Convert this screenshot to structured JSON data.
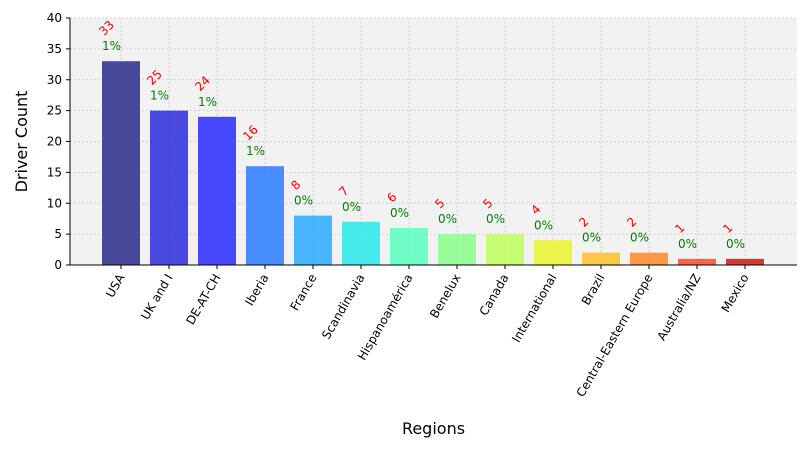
{
  "chart_data": {
    "type": "bar",
    "title": "",
    "xlabel": "Regions",
    "ylabel": "Driver Count",
    "ylim": [
      0,
      40
    ],
    "yticks": [
      0,
      5,
      10,
      15,
      20,
      25,
      30,
      35,
      40
    ],
    "grid": true,
    "categories": [
      "USA",
      "UK and I",
      "DE-AT-CH",
      "Iberia",
      "France",
      "Scandinavia",
      "Hispanoamérica",
      "Benelux",
      "Canada",
      "International",
      "Brazil",
      "Central-Eastern Europe",
      "Australia/NZ",
      "Mexico"
    ],
    "values": [
      33,
      25,
      24,
      16,
      8,
      7,
      6,
      5,
      5,
      4,
      2,
      2,
      1,
      1
    ],
    "count_labels": [
      "33",
      "25",
      "24",
      "16",
      "8",
      "7",
      "6",
      "5",
      "5",
      "4",
      "2",
      "2",
      "1",
      "1"
    ],
    "percent_labels": [
      "1%",
      "1%",
      "1%",
      "1%",
      "0%",
      "0%",
      "0%",
      "0%",
      "0%",
      "0%",
      "0%",
      "0%",
      "0%",
      "0%"
    ],
    "colors": [
      "#2a2a8c",
      "#2b2bdc",
      "#2a2aff",
      "#2a7bff",
      "#2aabff",
      "#2aeaea",
      "#5affbf",
      "#8aff8a",
      "#bfff5a",
      "#eaf52a",
      "#ffbf2a",
      "#ff8a2a",
      "#ff4a2a",
      "#cc1a1a"
    ],
    "plot_background": "#f2f2f2"
  }
}
